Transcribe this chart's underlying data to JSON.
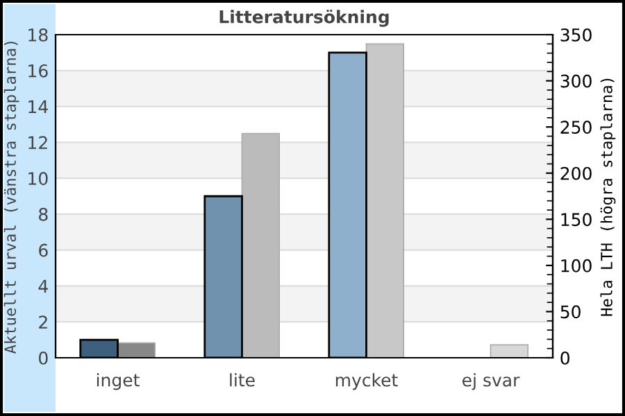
{
  "chart_data": {
    "type": "bar",
    "title": "Litteratursökning",
    "categories": [
      "inget",
      "lite",
      "mycket",
      "ej svar"
    ],
    "ylabel": "Aktuellt urval (vänstra staplarna)",
    "y2label": "Hela LTH (högra staplarna)",
    "series": [
      {
        "colors": [
          "#3f5f7f",
          "#7092ae",
          "#8fb0cc",
          "#a8c4dc"
        ],
        "values": [
          1,
          9,
          17,
          0
        ]
      },
      {
        "colors": [
          "#888888",
          "#bbbbbb",
          "#c8c8c8",
          "#d8d8d8"
        ],
        "values": [
          16,
          243,
          340,
          14
        ],
        "axis": "y2"
      }
    ],
    "ylim": [
      0,
      18
    ],
    "yticks": [
      0,
      2,
      4,
      6,
      8,
      10,
      12,
      14,
      16,
      18
    ],
    "y2lim": [
      0,
      350
    ],
    "y2ticks": [
      0,
      50,
      100,
      150,
      200,
      250,
      300,
      350
    ],
    "grid": "y",
    "bands": [
      {
        "axis": "y",
        "from": 2,
        "to": 4,
        "color": "#f3f3f3"
      },
      {
        "axis": "y",
        "from": 6,
        "to": 8,
        "color": "#f3f3f3"
      },
      {
        "axis": "y",
        "from": 10,
        "to": 12,
        "color": "#f3f3f3"
      },
      {
        "axis": "y",
        "from": 14,
        "to": 16,
        "color": "#f3f3f3"
      }
    ]
  }
}
